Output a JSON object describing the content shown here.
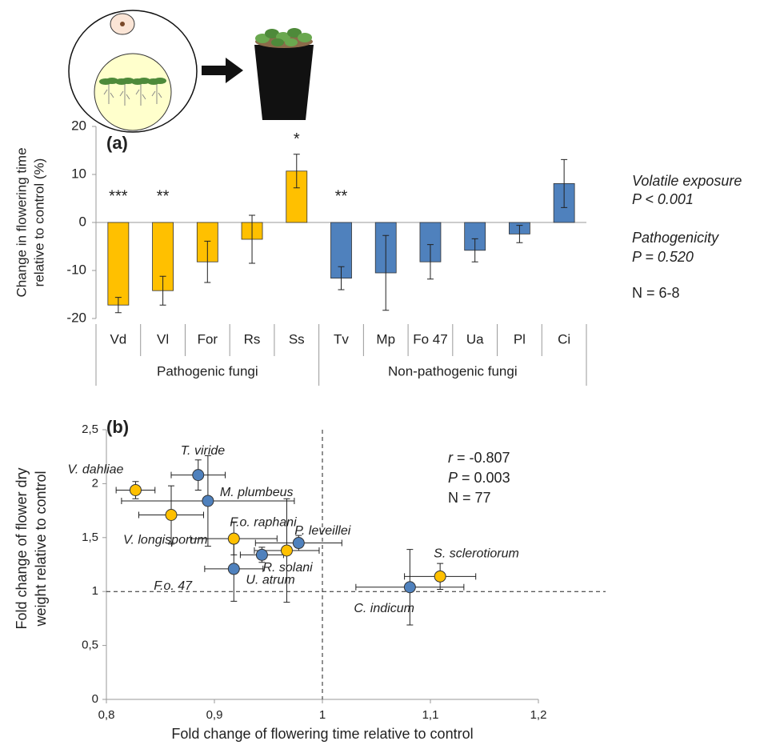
{
  "chart_data": [
    {
      "type": "bar",
      "panel": "(a)",
      "ylabel": [
        "Change in flowering time",
        "relative to control (%)"
      ],
      "categories": [
        "Vd",
        "Vl",
        "For",
        "Rs",
        "Ss",
        "Tv",
        "Mp",
        "Fo 47",
        "Ua",
        "Pl",
        "Ci"
      ],
      "values": [
        -17.2,
        -14.2,
        -8.2,
        -3.5,
        10.7,
        -11.6,
        -10.5,
        -8.2,
        -5.8,
        -2.4,
        8.1
      ],
      "errors": [
        1.6,
        3.0,
        4.3,
        5.0,
        3.5,
        2.4,
        7.8,
        3.6,
        2.4,
        1.8,
        5.0
      ],
      "colors": [
        "#ffc000",
        "#ffc000",
        "#ffc000",
        "#ffc000",
        "#ffc000",
        "#4f81bd",
        "#4f81bd",
        "#4f81bd",
        "#4f81bd",
        "#4f81bd",
        "#4f81bd"
      ],
      "significance": [
        "***",
        "**",
        null,
        null,
        "*",
        "**",
        null,
        null,
        null,
        null,
        null
      ],
      "groups": [
        {
          "label": "Pathogenic fungi",
          "start": 0,
          "end": 4
        },
        {
          "label": "Non-pathogenic fungi",
          "start": 5,
          "end": 10
        }
      ],
      "ylim": [
        -20,
        20
      ],
      "yticks": [
        20,
        10,
        0,
        -10,
        -20
      ],
      "side_notes": [
        {
          "text": "Volatile exposure",
          "italic": true
        },
        {
          "text": "P < 0.001",
          "italic": true
        },
        {
          "text": "Pathogenicity",
          "italic": true
        },
        {
          "text": "P = 0.520",
          "italic": true
        },
        {
          "text": "N = 6-8",
          "italic": false
        }
      ]
    },
    {
      "type": "scatter",
      "panel": "(b)",
      "xlabel": "Fold change of flowering time relative to control",
      "ylabel": [
        "Fold change of flower dry",
        "weight relative to control"
      ],
      "points": [
        "V. dahliae",
        "T. viride",
        "M. plumbeus",
        "V. longisporum",
        "F.o. raphani",
        "P. leveillei",
        "U. atrum",
        "R. solani",
        "F.o. 47",
        "S. sclerotiorum",
        "C. indicum"
      ],
      "x": [
        0.827,
        0.885,
        0.894,
        0.86,
        0.918,
        0.978,
        0.944,
        0.967,
        0.918,
        1.109,
        1.081
      ],
      "y": [
        1.94,
        2.08,
        1.84,
        1.71,
        1.49,
        1.45,
        1.34,
        1.38,
        1.21,
        1.14,
        1.04
      ],
      "xerr": [
        0.018,
        0.025,
        0.08,
        0.03,
        0.04,
        0.04,
        0.02,
        0.03,
        0.027,
        0.033,
        0.05
      ],
      "yerr": [
        0.08,
        0.14,
        0.42,
        0.27,
        0.15,
        0.07,
        0.07,
        0.48,
        0.3,
        0.12,
        0.35
      ],
      "colors": [
        "#ffc000",
        "#4f81bd",
        "#4f81bd",
        "#ffc000",
        "#ffc000",
        "#4f81bd",
        "#4f81bd",
        "#ffc000",
        "#4f81bd",
        "#ffc000",
        "#4f81bd"
      ],
      "reference_lines": {
        "x": 1,
        "y": 1
      },
      "xlim": [
        0.8,
        1.2
      ],
      "xticks": [
        {
          "value": 0.8,
          "label": "0,8"
        },
        {
          "value": 0.9,
          "label": "0,9"
        },
        1,
        {
          "value": 1.1,
          "label": "1,1"
        },
        {
          "value": 1.2,
          "label": "1,2"
        }
      ],
      "ylim": [
        0,
        2.5
      ],
      "yticks": [
        0,
        {
          "value": 0.5,
          "label": "0,5"
        },
        1,
        {
          "value": 1.5,
          "label": "1,5"
        },
        2,
        {
          "value": 2.5,
          "label": "2,5"
        }
      ],
      "stats": [
        {
          "symbol": "r",
          "text": " = -0.807"
        },
        {
          "symbol": "P",
          "text": " = 0.003"
        },
        {
          "symbol": "N",
          "text": " = 77",
          "plain": true
        }
      ]
    }
  ]
}
